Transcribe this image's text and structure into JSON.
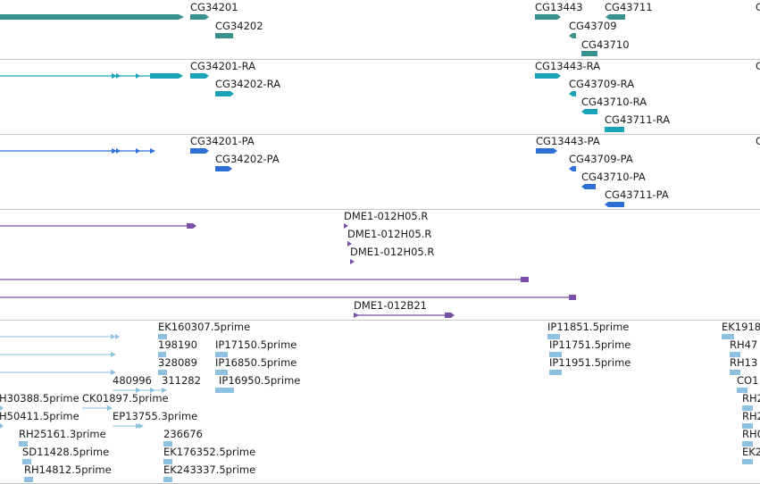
{
  "colors": {
    "gene": "#3a8f8f",
    "transcript": "#1aa3b8",
    "protein": "#2e6fd6",
    "match": "#7a4fa8",
    "est": "#8ec0e0"
  },
  "tracks": {
    "genes": {
      "labels": [
        "CG34201",
        "CG34202",
        "CG13443",
        "CG43709",
        "CG43711",
        "CG43710",
        "CG"
      ]
    },
    "transcripts": {
      "labels": [
        "CG34201-RA",
        "CG34202-RA",
        "CG13443-RA",
        "CG43709-RA",
        "CG43710-RA",
        "CG43711-RA",
        "C"
      ]
    },
    "proteins": {
      "labels": [
        "CG34201-PA",
        "CG34202-PA",
        "CG13443-PA",
        "CG43709-PA",
        "CG43710-PA",
        "CG43711-PA",
        "C"
      ]
    },
    "matches": {
      "labels": [
        "DME1-012H05.R",
        "DME1-012H05.R",
        "DME1-012H05.R",
        "DME1-012B21"
      ]
    },
    "ests": {
      "labels": [
        "EK160307.5prime",
        "198190",
        "IP17150.5prime",
        "328089",
        "IP16850.5prime",
        "480996",
        "311282",
        "IP16950.5prime",
        "H30388.5prime",
        "CK01897.5prime",
        "H50411.5prime",
        "EP13755.3prime",
        "RH25161.3prime",
        "236676",
        "SD11428.5prime",
        "EK176352.5prime",
        "RH14812.5prime",
        "EK243337.5prime",
        "IP11851.5prime",
        "IP11751.5prime",
        "IP11951.5prime",
        "EK1918",
        "RH47",
        "RH13",
        "CO1",
        "RH2",
        "RH2",
        "RH0",
        "EK2"
      ]
    }
  }
}
